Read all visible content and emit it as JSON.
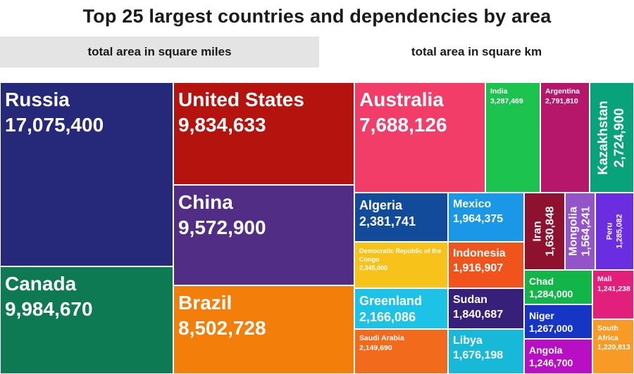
{
  "page": {
    "title": "Top 25 largest countries and dependencies by area"
  },
  "tabs": [
    {
      "label": "total area in square miles",
      "active": false
    },
    {
      "label": "total area in square km",
      "active": true
    }
  ],
  "chart_data": {
    "type": "treemap",
    "title": "Top 25 largest countries and dependencies by area",
    "unit": "square km",
    "series": [
      {
        "name": "Russia",
        "value": 17075400,
        "display": "17,075,400",
        "color": "#26287a"
      },
      {
        "name": "Canada",
        "value": 9984670,
        "display": "9,984,670",
        "color": "#0e7a53"
      },
      {
        "name": "United States",
        "value": 9834633,
        "display": "9,834,633",
        "color": "#b5140e"
      },
      {
        "name": "China",
        "value": 9572900,
        "display": "9,572,900",
        "color": "#512d85"
      },
      {
        "name": "Brazil",
        "value": 8502728,
        "display": "8,502,728",
        "color": "#f47e0a"
      },
      {
        "name": "Australia",
        "value": 7688126,
        "display": "7,688,126",
        "color": "#f23d68"
      },
      {
        "name": "India",
        "value": 3287469,
        "display": "3,287,469",
        "color": "#1cc44f"
      },
      {
        "name": "Argentina",
        "value": 2791810,
        "display": "2,791,810",
        "color": "#b6176b"
      },
      {
        "name": "Kazakhstan",
        "value": 2724900,
        "display": "2,724,900",
        "color": "#08a37a"
      },
      {
        "name": "Algeria",
        "value": 2381741,
        "display": "2,381,741",
        "color": "#124b99"
      },
      {
        "name": "Democratic Republic of the Congo",
        "value": 2345000,
        "display": "2,345,000",
        "color": "#f7c21a"
      },
      {
        "name": "Greenland",
        "value": 2166086,
        "display": "2,166,086",
        "color": "#1dc3e6"
      },
      {
        "name": "Saudi Arabia",
        "value": 2149690,
        "display": "2,149,690",
        "color": "#f26a1b"
      },
      {
        "name": "Mexico",
        "value": 1964375,
        "display": "1,964,375",
        "color": "#1a97e6"
      },
      {
        "name": "Indonesia",
        "value": 1916907,
        "display": "1,916,907",
        "color": "#f0531c"
      },
      {
        "name": "Sudan",
        "value": 1840687,
        "display": "1,840,687",
        "color": "#37207a"
      },
      {
        "name": "Libya",
        "value": 1676198,
        "display": "1,676,198",
        "color": "#18b9d8"
      },
      {
        "name": "Iran",
        "value": 1630848,
        "display": "1,630,848",
        "color": "#8e1230"
      },
      {
        "name": "Mongolia",
        "value": 1564241,
        "display": "1,564,241",
        "color": "#9254c7"
      },
      {
        "name": "Peru",
        "value": 1285082,
        "display": "1,285,082",
        "color": "#6b2de0"
      },
      {
        "name": "Chad",
        "value": 1284000,
        "display": "1,284,000",
        "color": "#12b548"
      },
      {
        "name": "Niger",
        "value": 1267000,
        "display": "1,267,000",
        "color": "#1735c4"
      },
      {
        "name": "Angola",
        "value": 1246700,
        "display": "1,246,700",
        "color": "#b90fc4"
      },
      {
        "name": "Mali",
        "value": 1241238,
        "display": "1,241,238",
        "color": "#e31f7c"
      },
      {
        "name": "South Africa",
        "value": 1220813,
        "display": "1,220,813",
        "color": "#f79b26"
      }
    ]
  }
}
